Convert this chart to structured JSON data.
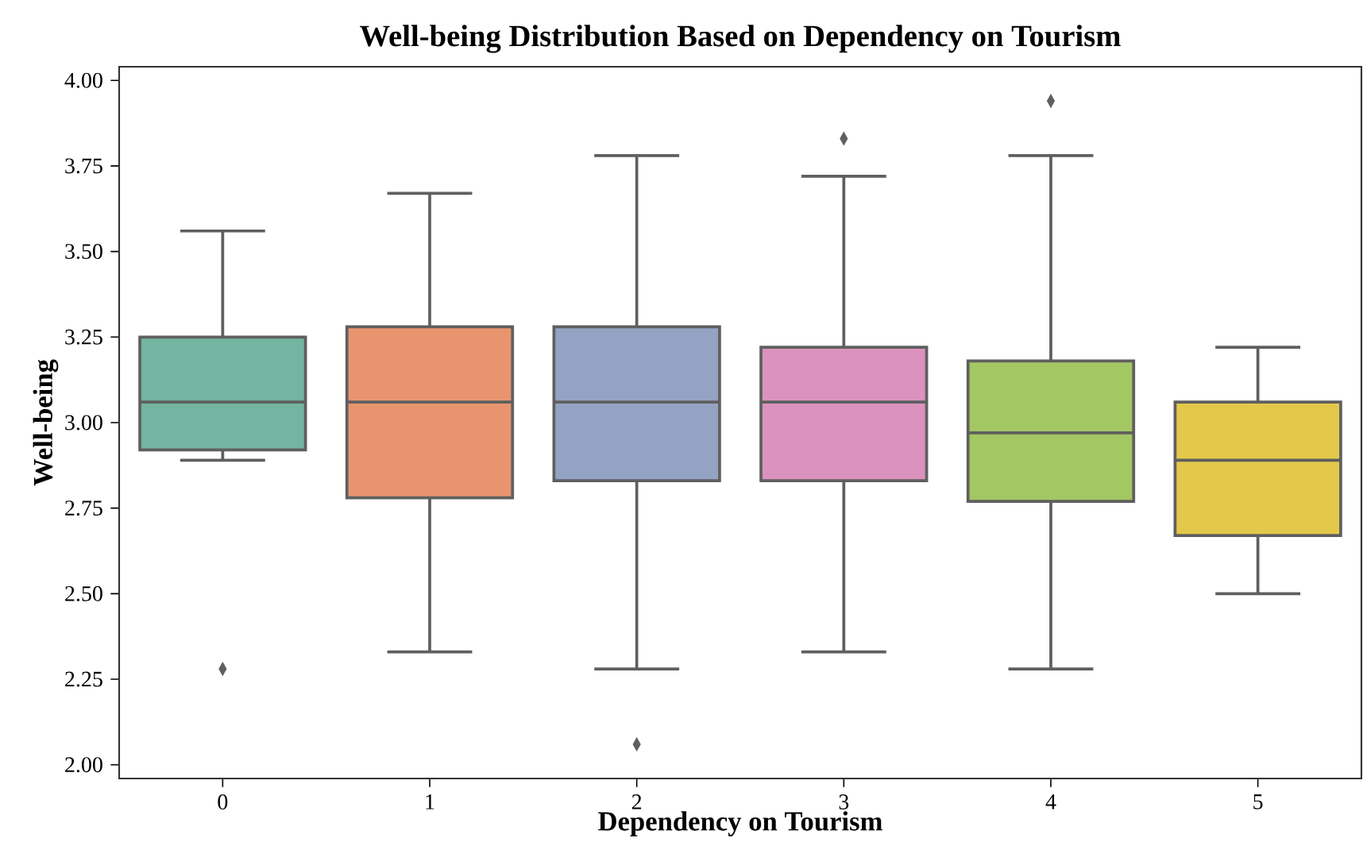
{
  "chart_data": {
    "type": "box",
    "title": "Well-being Distribution Based on Dependency on Tourism",
    "xlabel": "Dependency on Tourism",
    "ylabel": "Well-being",
    "categories": [
      "0",
      "1",
      "2",
      "3",
      "4",
      "5"
    ],
    "colors": [
      "#73b5a0",
      "#e8956f",
      "#94a3c4",
      "#db93bd",
      "#a3c763",
      "#e3c84a"
    ],
    "boxes": [
      {
        "low": 2.89,
        "q1": 2.92,
        "median": 3.06,
        "q3": 3.25,
        "high": 3.56,
        "outliers": [
          2.28
        ]
      },
      {
        "low": 2.33,
        "q1": 2.78,
        "median": 3.06,
        "q3": 3.28,
        "high": 3.67
      },
      {
        "low": 2.28,
        "q1": 2.83,
        "median": 3.06,
        "q3": 3.28,
        "high": 3.78,
        "outliers": [
          2.06
        ]
      },
      {
        "low": 2.33,
        "q1": 2.83,
        "median": 3.06,
        "q3": 3.22,
        "high": 3.72,
        "outliers": [
          3.83
        ]
      },
      {
        "low": 2.28,
        "q1": 2.77,
        "median": 2.97,
        "q3": 3.18,
        "high": 3.78,
        "outliers": [
          3.94
        ]
      },
      {
        "low": 2.5,
        "q1": 2.67,
        "median": 2.89,
        "q3": 3.06,
        "high": 3.22
      }
    ],
    "ylim": [
      1.96,
      4.04
    ],
    "yticks": [
      {
        "value": 2.0,
        "label": "2.00"
      },
      {
        "value": 2.25,
        "label": "2.25"
      },
      {
        "value": 2.5,
        "label": "2.50"
      },
      {
        "value": 2.75,
        "label": "2.75"
      },
      {
        "value": 3.0,
        "label": "3.00"
      },
      {
        "value": 3.25,
        "label": "3.25"
      },
      {
        "value": 3.5,
        "label": "3.50"
      },
      {
        "value": 3.75,
        "label": "3.75"
      },
      {
        "value": 4.0,
        "label": "4.00"
      }
    ],
    "marker": "diamond"
  }
}
